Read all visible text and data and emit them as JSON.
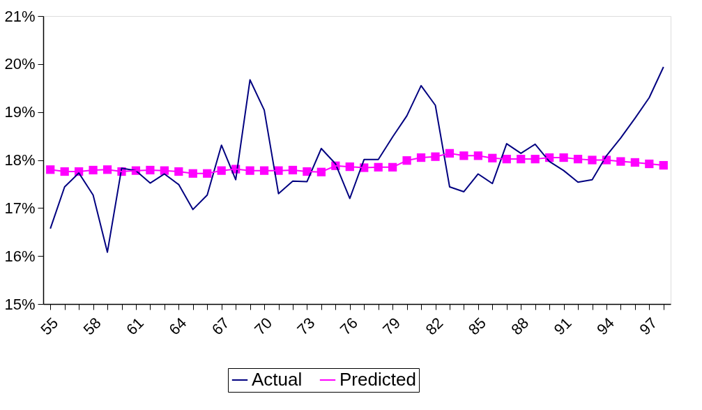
{
  "chart_data": {
    "type": "line",
    "categories": [
      "55",
      null,
      null,
      "58",
      null,
      null,
      "61",
      null,
      null,
      "64",
      null,
      null,
      "67",
      null,
      null,
      "70",
      null,
      null,
      "73",
      null,
      null,
      "76",
      null,
      null,
      "79",
      null,
      null,
      "82",
      null,
      null,
      "85",
      null,
      null,
      "88",
      null,
      null,
      "91",
      null,
      null,
      "94",
      null,
      null,
      "97",
      null
    ],
    "series": [
      {
        "name": "Actual",
        "color": "#000080",
        "marker": "none",
        "values": [
          16.57,
          17.44,
          17.73,
          17.27,
          16.08,
          17.83,
          17.78,
          17.52,
          17.71,
          17.49,
          16.97,
          17.27,
          18.31,
          17.59,
          19.67,
          19.04,
          17.3,
          17.56,
          17.55,
          18.24,
          17.92,
          17.2,
          18.01,
          18.01,
          18.48,
          18.92,
          19.55,
          19.14,
          17.44,
          17.34,
          17.71,
          17.51,
          18.34,
          18.14,
          18.33,
          17.97,
          17.78,
          17.54,
          17.59,
          18.09,
          18.46,
          18.87,
          19.3,
          19.94
        ]
      },
      {
        "name": "Predicted",
        "color": "#ff00ff",
        "marker": "square",
        "values": [
          17.8,
          17.76,
          17.76,
          17.79,
          17.8,
          17.76,
          17.78,
          17.79,
          17.78,
          17.76,
          17.72,
          17.72,
          17.78,
          17.81,
          17.78,
          17.78,
          17.78,
          17.79,
          17.76,
          17.75,
          17.88,
          17.86,
          17.84,
          17.85,
          17.85,
          17.99,
          18.05,
          18.07,
          18.14,
          18.09,
          18.09,
          18.04,
          18.02,
          18.02,
          18.02,
          18.05,
          18.05,
          18.02,
          18.0,
          18.0,
          17.97,
          17.95,
          17.92,
          17.89
        ]
      }
    ],
    "ylim": [
      15,
      21
    ],
    "yticks": [
      {
        "value": 15,
        "label": "15%"
      },
      {
        "value": 16,
        "label": "16%"
      },
      {
        "value": 17,
        "label": "17%"
      },
      {
        "value": 18,
        "label": "18%"
      },
      {
        "value": 19,
        "label": "19%"
      },
      {
        "value": 20,
        "label": "20%"
      },
      {
        "value": 21,
        "label": "21%"
      }
    ],
    "grid": false,
    "legend": "bottom"
  }
}
